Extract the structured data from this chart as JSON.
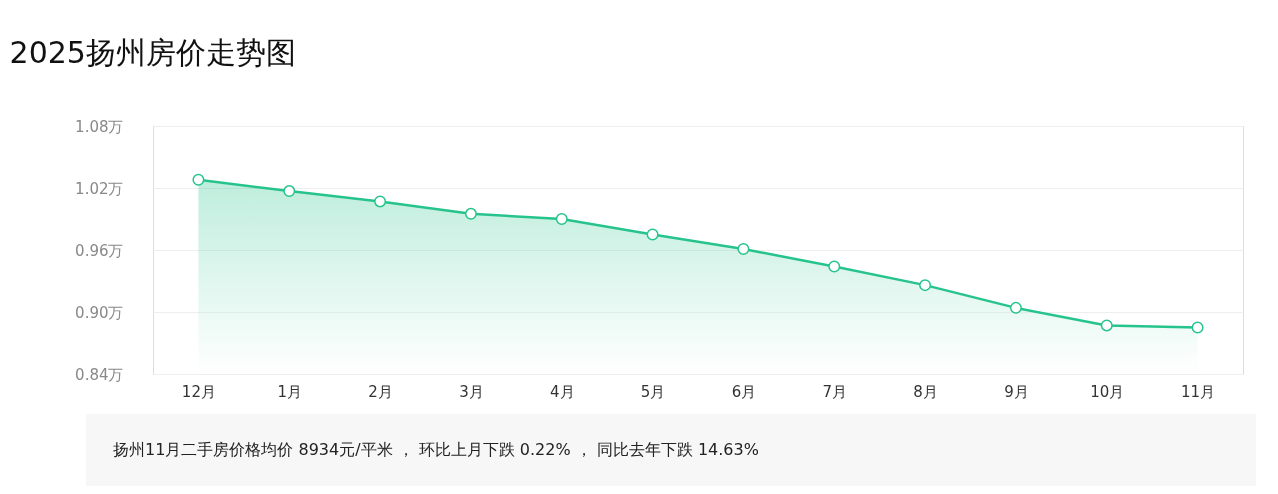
{
  "chart_data": {
    "type": "area",
    "title": "2025扬州房价走势图",
    "categories": [
      "12月",
      "1月",
      "2月",
      "3月",
      "4月",
      "5月",
      "6月",
      "7月",
      "8月",
      "9月",
      "10月",
      "11月"
    ],
    "series": [
      {
        "color": "#26c48c",
        "values": [
          1.028,
          1.017,
          1.007,
          0.995,
          0.99,
          0.975,
          0.961,
          0.944,
          0.926,
          0.904,
          0.887,
          0.885
        ]
      }
    ],
    "ylim": [
      0.84,
      1.08
    ],
    "yticks": [
      {
        "value": 0.84,
        "label": "0.84万"
      },
      {
        "value": 0.9,
        "label": "0.90万"
      },
      {
        "value": 0.96,
        "label": "0.96万"
      },
      {
        "value": 1.02,
        "label": "1.02万"
      },
      {
        "value": 1.08,
        "label": "1.08万"
      }
    ],
    "grid": "y",
    "marker": "circle",
    "annotations": [
      "扬州11月二手房价格均价 8934元/平米 ， 环比上月下跌 0.22% ， 同比去年下跌 14.63%"
    ]
  }
}
